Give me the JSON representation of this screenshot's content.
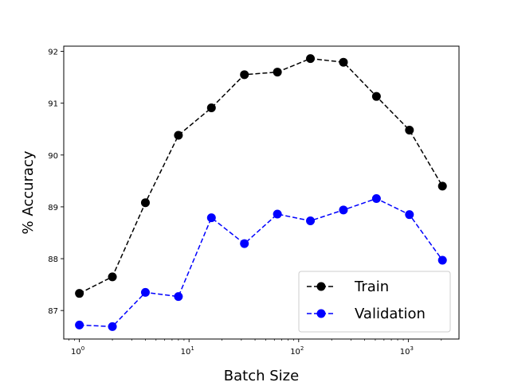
{
  "chart_data": {
    "type": "line",
    "xscale": "log",
    "x": [
      1,
      2,
      4,
      8,
      16,
      32,
      64,
      128,
      256,
      512,
      1024,
      2048
    ],
    "xlabel": "Batch Size",
    "ylabel": "% Accuracy",
    "xlim": [
      0.72,
      2900
    ],
    "ylim": [
      86.45,
      92.1
    ],
    "x_ticks": [
      {
        "value": 1,
        "base": "10",
        "exp": "0"
      },
      {
        "value": 10,
        "base": "10",
        "exp": "1"
      },
      {
        "value": 100,
        "base": "10",
        "exp": "2"
      },
      {
        "value": 1000,
        "base": "10",
        "exp": "3"
      }
    ],
    "y_ticks": [
      {
        "value": 87,
        "label": "87"
      },
      {
        "value": 88,
        "label": "88"
      },
      {
        "value": 89,
        "label": "89"
      },
      {
        "value": 90,
        "label": "90"
      },
      {
        "value": 91,
        "label": "91"
      },
      {
        "value": 92,
        "label": "92"
      }
    ],
    "grid": false,
    "legend": "lower-right",
    "series": [
      {
        "name": "Train",
        "color": "#000000",
        "marker": "circle",
        "linestyle": "dashed",
        "values": [
          87.33,
          87.65,
          89.08,
          90.38,
          90.91,
          91.55,
          91.6,
          91.86,
          91.79,
          91.13,
          90.48,
          89.4
        ]
      },
      {
        "name": "Validation",
        "color": "#0000ff",
        "marker": "circle",
        "linestyle": "dashed",
        "values": [
          86.72,
          86.69,
          87.35,
          87.27,
          88.79,
          88.29,
          88.86,
          88.73,
          88.94,
          89.16,
          88.85,
          87.97
        ]
      }
    ]
  }
}
